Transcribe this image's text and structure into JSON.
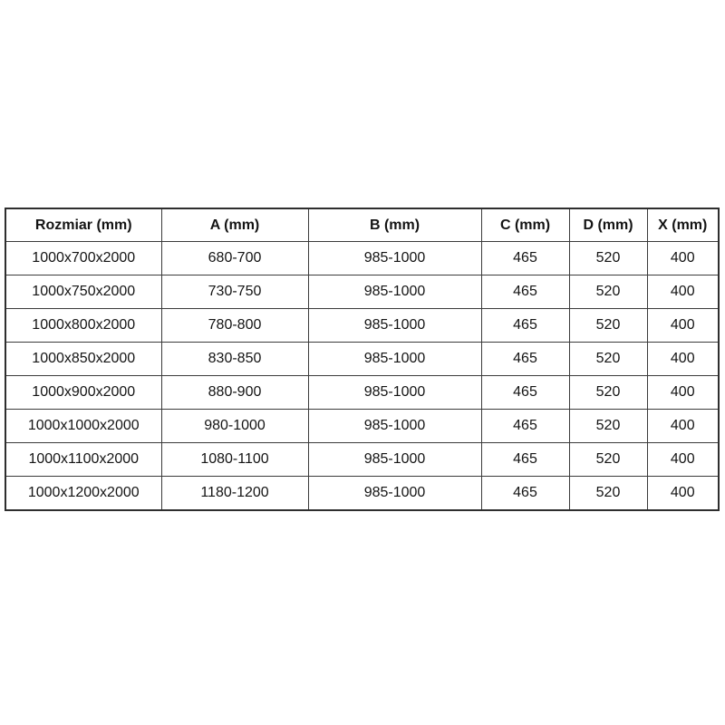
{
  "table": {
    "headers": [
      "Rozmiar (mm)",
      "A (mm)",
      "B (mm)",
      "C (mm)",
      "D (mm)",
      "X (mm)"
    ],
    "rows": [
      [
        "1000x700x2000",
        "680-700",
        "985-1000",
        "465",
        "520",
        "400"
      ],
      [
        "1000x750x2000",
        "730-750",
        "985-1000",
        "465",
        "520",
        "400"
      ],
      [
        "1000x800x2000",
        "780-800",
        "985-1000",
        "465",
        "520",
        "400"
      ],
      [
        "1000x850x2000",
        "830-850",
        "985-1000",
        "465",
        "520",
        "400"
      ],
      [
        "1000x900x2000",
        "880-900",
        "985-1000",
        "465",
        "520",
        "400"
      ],
      [
        "1000x1000x2000",
        "980-1000",
        "985-1000",
        "465",
        "520",
        "400"
      ],
      [
        "1000x1100x2000",
        "1080-1100",
        "985-1000",
        "465",
        "520",
        "400"
      ],
      [
        "1000x1200x2000",
        "1180-1200",
        "985-1000",
        "465",
        "520",
        "400"
      ]
    ],
    "colors": {
      "border_outer": "#2e2e2e",
      "border_inner": "#3b3b3b",
      "text": "#141414",
      "background": "#ffffff"
    }
  }
}
